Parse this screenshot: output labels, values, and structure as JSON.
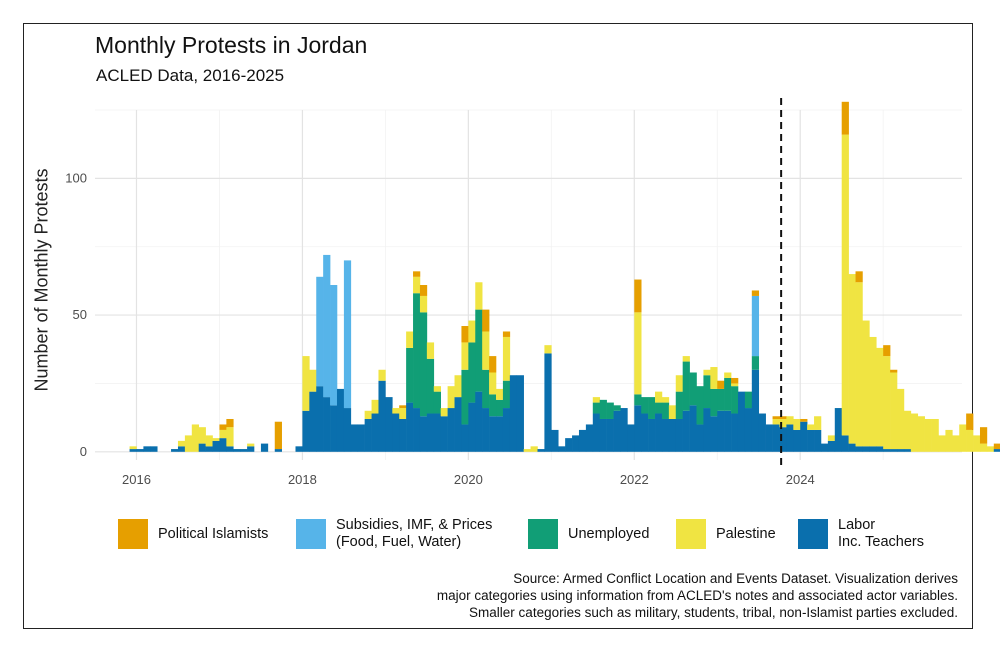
{
  "chart_data": {
    "type": "bar",
    "stacked": true,
    "title": "Monthly Protests in Jordan",
    "subtitle": "ACLED Data, 2016-2025",
    "xlabel": "",
    "ylabel": "Number of Monthly Protests",
    "x_start": "2015-12",
    "xlim": [
      2015.5,
      2025.95
    ],
    "ylim": [
      -3,
      125
    ],
    "x_ticks": [
      2016,
      2018,
      2020,
      2022,
      2024
    ],
    "y_ticks": [
      0,
      50,
      100
    ],
    "vline": {
      "x": 2023.77,
      "style": "dashed"
    },
    "legend_position": "bottom",
    "series": [
      {
        "name": "Labor Inc. Teachers",
        "color": "#0a6fad",
        "values": [
          1,
          1,
          2,
          2,
          0,
          0,
          1,
          2,
          0,
          0,
          3,
          2,
          4,
          5,
          2,
          1,
          1,
          2,
          0,
          3,
          0,
          1,
          0,
          0,
          2,
          15,
          22,
          24,
          20,
          17,
          23,
          16,
          10,
          10,
          12,
          14,
          26,
          20,
          14,
          12,
          18,
          16,
          13,
          14,
          14,
          13,
          16,
          20,
          10,
          18,
          22,
          16,
          13,
          13,
          16,
          28,
          28,
          0,
          0,
          1,
          36,
          8,
          2,
          5,
          6,
          8,
          10,
          14,
          12,
          12,
          15,
          16,
          10,
          17,
          14,
          12,
          14,
          12,
          12,
          12,
          15,
          17,
          10,
          16,
          13,
          15,
          15,
          14,
          22,
          16,
          30,
          14,
          10,
          10,
          9,
          10,
          8,
          11,
          8,
          8,
          3,
          4,
          16,
          6,
          3,
          2,
          2,
          2,
          2,
          1,
          1,
          1,
          1,
          0,
          0,
          0,
          0,
          0,
          0,
          0,
          0,
          0,
          0,
          0,
          0,
          1,
          1,
          1,
          0
        ]
      },
      {
        "name": "Unemployed",
        "color": "#119e76",
        "values": [
          0,
          0,
          0,
          0,
          0,
          0,
          0,
          0,
          0,
          0,
          0,
          0,
          0,
          0,
          0,
          0,
          0,
          0,
          0,
          0,
          0,
          0,
          0,
          0,
          0,
          0,
          0,
          0,
          0,
          0,
          0,
          0,
          0,
          0,
          0,
          0,
          0,
          0,
          0,
          0,
          20,
          42,
          38,
          20,
          8,
          0,
          0,
          0,
          20,
          22,
          30,
          14,
          8,
          6,
          10,
          0,
          0,
          0,
          0,
          0,
          0,
          0,
          0,
          0,
          0,
          0,
          0,
          4,
          7,
          6,
          2,
          0,
          0,
          4,
          6,
          8,
          4,
          6,
          0,
          10,
          18,
          12,
          14,
          12,
          10,
          8,
          12,
          10,
          0,
          6,
          5,
          0,
          0,
          0,
          0,
          0,
          0,
          0,
          0,
          0,
          0,
          0,
          0,
          0,
          0,
          0,
          0,
          0,
          0,
          0,
          0,
          0,
          0,
          0,
          0,
          0,
          0,
          0,
          0,
          0,
          0,
          0,
          0,
          0,
          0,
          0,
          0,
          0,
          0
        ]
      },
      {
        "name": "Palestine",
        "color": "#f0e442",
        "values": [
          1,
          0,
          0,
          0,
          0,
          0,
          0,
          2,
          6,
          10,
          6,
          4,
          1,
          3,
          7,
          0,
          0,
          1,
          0,
          0,
          0,
          0,
          0,
          0,
          0,
          20,
          8,
          0,
          0,
          0,
          0,
          0,
          0,
          0,
          3,
          5,
          4,
          0,
          2,
          4,
          6,
          6,
          6,
          6,
          2,
          3,
          8,
          8,
          10,
          8,
          10,
          14,
          8,
          4,
          16,
          0,
          0,
          1,
          2,
          0,
          3,
          0,
          0,
          0,
          0,
          0,
          0,
          2,
          0,
          0,
          0,
          0,
          0,
          30,
          0,
          0,
          4,
          2,
          5,
          6,
          2,
          0,
          0,
          2,
          8,
          0,
          2,
          1,
          0,
          0,
          0,
          0,
          0,
          2,
          3,
          3,
          4,
          0,
          2,
          5,
          0,
          2,
          0,
          110,
          62,
          60,
          46,
          40,
          36,
          34,
          28,
          22,
          14,
          14,
          13,
          12,
          12,
          6,
          8,
          6,
          10,
          8,
          6,
          3,
          2,
          0,
          0,
          0
        ]
      },
      {
        "name": "Political Islamists",
        "color": "#e69f00",
        "values": [
          0,
          0,
          0,
          0,
          0,
          0,
          0,
          0,
          0,
          0,
          0,
          0,
          0,
          2,
          3,
          0,
          0,
          0,
          0,
          0,
          0,
          10,
          0,
          0,
          0,
          0,
          0,
          0,
          0,
          0,
          0,
          0,
          0,
          0,
          0,
          0,
          0,
          0,
          0,
          1,
          0,
          2,
          4,
          0,
          0,
          0,
          0,
          0,
          6,
          0,
          0,
          8,
          6,
          0,
          2,
          0,
          0,
          0,
          0,
          0,
          0,
          0,
          0,
          0,
          0,
          0,
          0,
          0,
          0,
          0,
          0,
          0,
          0,
          12,
          0,
          0,
          0,
          0,
          0,
          0,
          0,
          0,
          0,
          0,
          0,
          3,
          0,
          2,
          0,
          0,
          2,
          0,
          0,
          1,
          1,
          0,
          0,
          1,
          0,
          0,
          0,
          0,
          0,
          12,
          0,
          4,
          0,
          0,
          0,
          4,
          1,
          0,
          0,
          0,
          0,
          0,
          0,
          0,
          0,
          0,
          0,
          6,
          0,
          6,
          0,
          2,
          0,
          0,
          0
        ]
      },
      {
        "name": "Subsidies, IMF, & Prices (Food, Fuel, Water)",
        "color": "#56b4e9",
        "values": [
          0,
          0,
          0,
          0,
          0,
          0,
          0,
          0,
          0,
          0,
          0,
          0,
          0,
          0,
          0,
          0,
          0,
          0,
          0,
          0,
          0,
          0,
          0,
          0,
          0,
          0,
          0,
          0,
          0,
          0,
          0,
          0,
          0,
          0,
          0,
          0,
          0,
          0,
          0,
          0,
          0,
          0,
          0,
          0,
          0,
          0,
          0,
          0,
          0,
          0,
          0,
          0,
          0,
          0,
          0,
          0,
          0,
          0,
          0,
          0,
          0,
          0,
          0,
          0,
          0,
          0,
          0,
          0,
          0,
          0,
          0,
          0,
          0,
          0,
          0,
          0,
          0,
          0,
          0,
          0,
          0,
          0,
          0,
          0,
          0,
          0,
          0,
          0,
          0,
          0,
          0,
          0,
          0,
          0,
          0,
          0,
          0,
          0,
          0,
          0,
          0,
          0,
          0,
          0,
          0,
          0,
          0,
          0,
          0,
          0,
          0,
          0,
          0,
          0,
          0,
          0,
          0,
          0,
          0,
          0,
          0,
          0,
          0,
          0,
          0,
          0,
          0,
          0,
          0
        ],
        "overrides": {
          "27": 40,
          "28": 52,
          "29": 44,
          "31": 54,
          "90": 22,
          "70": 0
        }
      }
    ]
  },
  "legend": [
    {
      "key": "islamists",
      "color": "#e69f00",
      "lines": [
        "Political Islamists"
      ]
    },
    {
      "key": "subsidies",
      "color": "#56b4e9",
      "lines": [
        "Subsidies, IMF, & Prices",
        "(Food, Fuel, Water)"
      ]
    },
    {
      "key": "unemployed",
      "color": "#119e76",
      "lines": [
        "Unemployed"
      ]
    },
    {
      "key": "palestine",
      "color": "#f0e442",
      "lines": [
        "Palestine"
      ]
    },
    {
      "key": "labor",
      "color": "#0a6fad",
      "lines": [
        "Labor",
        "Inc. Teachers"
      ]
    }
  ],
  "caption": {
    "line1": "Source: Armed Conflict Location and Events Dataset. Visualization derives",
    "line2": "major categories using information from ACLED's notes and associated actor variables.",
    "line3": "Smaller categories such as military, students, tribal, non-Islamist parties excluded."
  }
}
